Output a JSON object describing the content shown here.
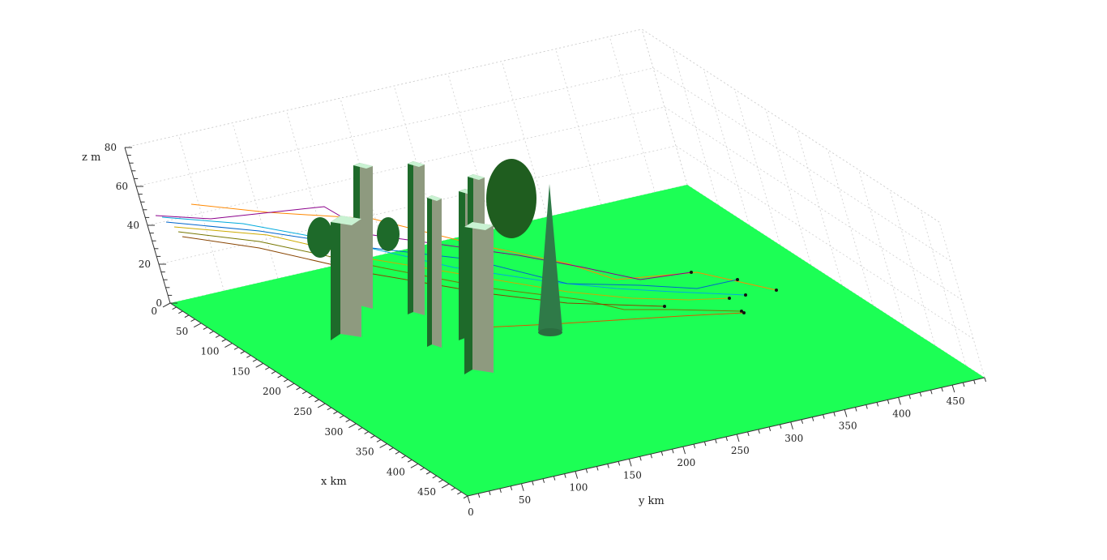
{
  "chart_data": {
    "type": "3d-scene",
    "xlabel": "x km",
    "ylabel": "y km",
    "zlabel": "z m",
    "xlim": [
      0,
      480
    ],
    "ylim": [
      0,
      480
    ],
    "zlim": [
      0,
      80
    ],
    "x_ticks": [
      0,
      50,
      100,
      150,
      200,
      250,
      300,
      350,
      400,
      450
    ],
    "y_ticks": [
      0,
      50,
      100,
      150,
      200,
      250,
      300,
      350,
      400,
      450
    ],
    "z_ticks": [
      0,
      20,
      40,
      60,
      80
    ],
    "grid": true,
    "ground_color": "#1cff55",
    "obstacle_dark_color": "#1e6a2a",
    "obstacle_light_color": "#8e9a7f",
    "trajectories": [
      {
        "color": "#ff8800",
        "end_label": "•"
      },
      {
        "color": "#8b008b",
        "end_label": "•"
      },
      {
        "color": "#00aadd",
        "end_label": "•"
      },
      {
        "color": "#0066cc",
        "end_label": "•"
      },
      {
        "color": "#ccaa00",
        "end_label": "•"
      },
      {
        "color": "#777700",
        "end_label": "•"
      },
      {
        "color": "#884400",
        "end_label": "•"
      },
      {
        "color": "#dd5500",
        "end_label": "•"
      }
    ]
  }
}
